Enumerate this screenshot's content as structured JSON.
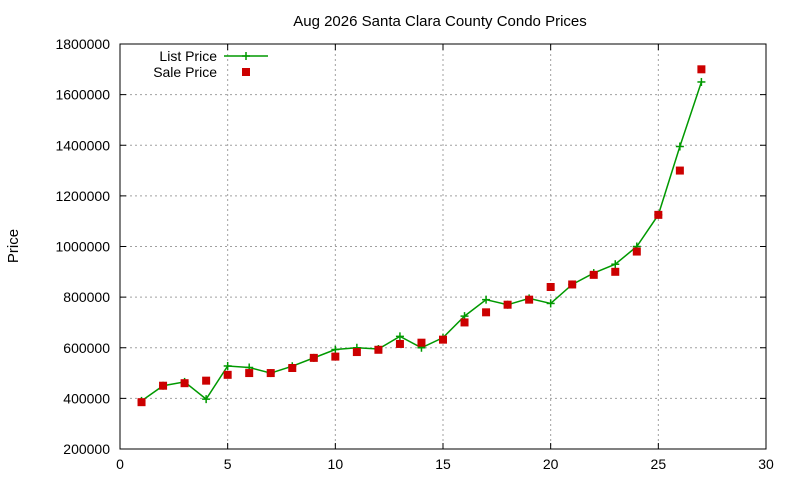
{
  "chart_data": {
    "type": "line",
    "title": "Aug 2026 Santa Clara County Condo Prices",
    "xlabel": "",
    "ylabel": "Price",
    "xlim": [
      0,
      30
    ],
    "ylim": [
      200000,
      1800000
    ],
    "xticks": [
      0,
      5,
      10,
      15,
      20,
      25,
      30
    ],
    "yticks": [
      200000,
      400000,
      600000,
      800000,
      1000000,
      1200000,
      1400000,
      1600000,
      1800000
    ],
    "grid": true,
    "legend_position": "top-left",
    "series": [
      {
        "name": "List Price",
        "style": "line-plus",
        "color": "#009900",
        "x": [
          1,
          2,
          3,
          4,
          5,
          6,
          7,
          8,
          9,
          10,
          11,
          12,
          13,
          14,
          15,
          16,
          17,
          18,
          19,
          20,
          21,
          22,
          23,
          24,
          25,
          26,
          27
        ],
        "y": [
          390000,
          450000,
          465000,
          397000,
          528000,
          522000,
          500000,
          527000,
          560000,
          593000,
          600000,
          595000,
          645000,
          600000,
          640000,
          725000,
          790000,
          770000,
          795000,
          775000,
          850000,
          895000,
          930000,
          1000000,
          1125000,
          1395000,
          1650000
        ]
      },
      {
        "name": "Sale Price",
        "style": "square",
        "color": "#cc0000",
        "x": [
          1,
          2,
          3,
          4,
          5,
          6,
          7,
          8,
          9,
          10,
          11,
          12,
          13,
          14,
          15,
          16,
          17,
          18,
          19,
          20,
          21,
          22,
          23,
          24,
          25,
          26,
          27
        ],
        "y": [
          385000,
          450000,
          460000,
          470000,
          493000,
          500000,
          500000,
          520000,
          560000,
          565000,
          583000,
          592000,
          615000,
          620000,
          632000,
          700000,
          740000,
          770000,
          790000,
          840000,
          850000,
          888000,
          900000,
          980000,
          1125000,
          1300000,
          1700000
        ]
      }
    ]
  }
}
